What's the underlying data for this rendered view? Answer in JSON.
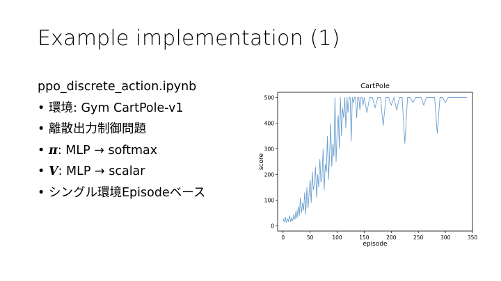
{
  "slide": {
    "title": "Example implementation (1)",
    "notebook": "ppo_discrete_action.ipynb",
    "bullets": [
      {
        "bullet": "•",
        "symbol": "",
        "text": "環境: Gym CartPole-v1"
      },
      {
        "bullet": "•",
        "symbol": "",
        "text": "離散出力制御問題"
      },
      {
        "bullet": "•",
        "symbol": "π",
        "text": ": MLP → softmax"
      },
      {
        "bullet": "•",
        "symbol": "V",
        "text": ": MLP → scalar"
      },
      {
        "bullet": "•",
        "symbol": "",
        "text": "シングル環境Episodeベース"
      }
    ]
  },
  "chart_data": {
    "type": "line",
    "title": "CartPole",
    "xlabel": "episode",
    "ylabel": "score",
    "xlim": [
      -10,
      350
    ],
    "ylim": [
      -20,
      520
    ],
    "xticks": [
      0,
      50,
      100,
      150,
      200,
      250,
      300,
      350
    ],
    "yticks": [
      0,
      100,
      200,
      300,
      400,
      500
    ],
    "grid": false,
    "line_color": "#6a9fd0",
    "series": [
      {
        "x": [
          0,
          2,
          4,
          6,
          8,
          10,
          12,
          14,
          16,
          18,
          20,
          22,
          24,
          26,
          28,
          30,
          32,
          34,
          36,
          38,
          40,
          42,
          44,
          46,
          48,
          50,
          52,
          54,
          56,
          58,
          60,
          62,
          64,
          66,
          68,
          70,
          72,
          74,
          76,
          78,
          80,
          82,
          84,
          86,
          88,
          90,
          92,
          94,
          96,
          98,
          100,
          102,
          104,
          106,
          108,
          110,
          112,
          114,
          116,
          118,
          120,
          122,
          124,
          126,
          128,
          130,
          132,
          134,
          136,
          138,
          140,
          142,
          144,
          146,
          148,
          150,
          155,
          160,
          165,
          170,
          175,
          180,
          185,
          190,
          195,
          200,
          205,
          210,
          215,
          220,
          225,
          230,
          235,
          240,
          245,
          250,
          255,
          260,
          265,
          270,
          275,
          280,
          285,
          290,
          295,
          300,
          305,
          310,
          315,
          320,
          325,
          330,
          335,
          340
        ],
        "values": [
          30,
          15,
          35,
          12,
          28,
          18,
          40,
          15,
          32,
          20,
          45,
          25,
          60,
          30,
          75,
          40,
          110,
          50,
          90,
          60,
          130,
          45,
          150,
          70,
          120,
          180,
          90,
          210,
          140,
          160,
          230,
          110,
          200,
          150,
          260,
          170,
          190,
          300,
          140,
          240,
          210,
          350,
          180,
          280,
          400,
          230,
          320,
          270,
          500,
          250,
          380,
          430,
          300,
          500,
          350,
          460,
          420,
          500,
          380,
          500,
          440,
          500,
          500,
          330,
          500,
          480,
          500,
          500,
          420,
          500,
          500,
          450,
          500,
          500,
          470,
          500,
          440,
          500,
          500,
          460,
          500,
          500,
          390,
          500,
          500,
          470,
          500,
          450,
          500,
          500,
          320,
          500,
          500,
          480,
          500,
          500,
          500,
          470,
          500,
          500,
          500,
          500,
          360,
          500,
          500,
          480,
          500,
          500,
          500,
          500,
          500,
          500,
          500,
          500
        ]
      }
    ]
  }
}
